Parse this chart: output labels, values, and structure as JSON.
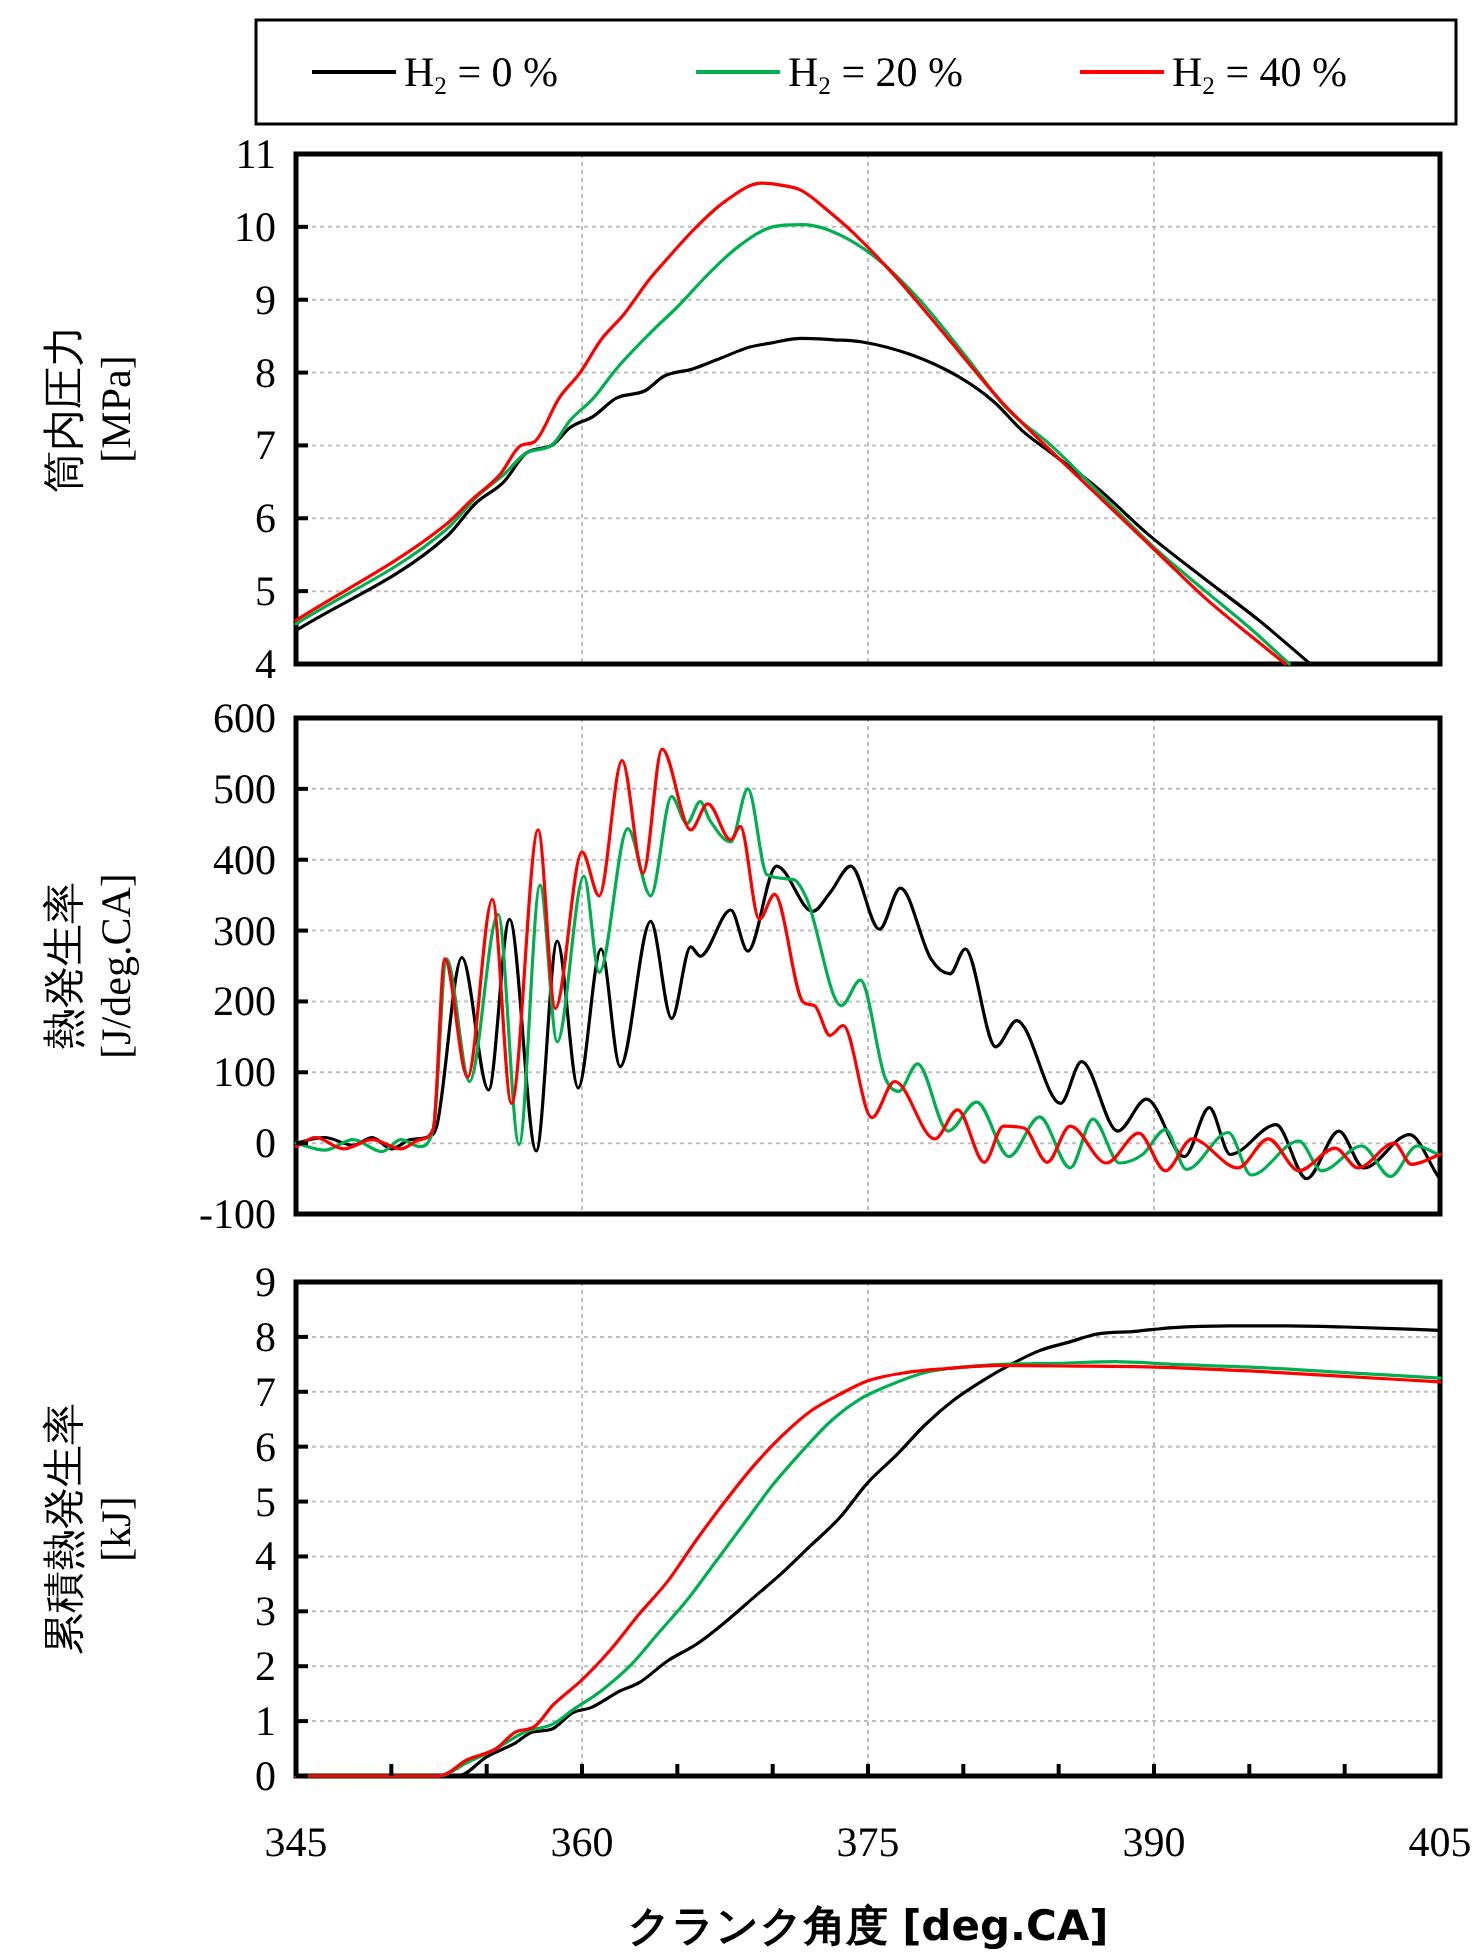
{
  "chart_data": [
    {
      "type": "line",
      "ylabel": "筒内圧力 [MPa]",
      "xlim": [
        345,
        405
      ],
      "xticks": [
        345,
        360,
        375,
        390,
        405
      ],
      "ylim": [
        4,
        11
      ],
      "yticks": [
        4,
        5,
        6,
        7,
        8,
        9,
        10,
        11
      ],
      "grid": true,
      "legend": "top",
      "tick_labels": "y",
      "line_style": "solid",
      "marker": "none",
      "series": [
        {
          "name": "H$_{2}$ = 0 %",
          "color": "#000000",
          "x": [
            345,
            352.9,
            354.4,
            355.9,
            357.1,
            358.4,
            359.4,
            360.6,
            361.8,
            363.3,
            364.3,
            365.8,
            367.3,
            368.8,
            369.8,
            371.5,
            373.2,
            374.7,
            377.2,
            379.7,
            381.6,
            383.1,
            384.6,
            387.1,
            389.6,
            392.5,
            395.5,
            398.2
          ],
          "values": [
            4.46,
            5.75,
            6.2,
            6.5,
            6.9,
            7.0,
            7.25,
            7.4,
            7.65,
            7.75,
            7.95,
            8.05,
            8.2,
            8.35,
            8.4,
            8.47,
            8.45,
            8.42,
            8.25,
            7.95,
            7.6,
            7.2,
            6.9,
            6.4,
            5.8,
            5.2,
            4.6,
            4.0
          ]
        },
        {
          "name": "H$_{2}$ = 20 %",
          "color": "#00b050",
          "x": [
            345,
            352.9,
            354.5,
            355.9,
            357.1,
            358.4,
            359.4,
            360.6,
            361.8,
            363.8,
            365,
            366.8,
            368.3,
            370,
            371.5,
            373,
            375.3,
            377.7,
            380.2,
            382.3,
            384.6,
            387.3,
            390,
            392.7,
            395,
            397.1
          ],
          "values": [
            4.55,
            5.85,
            6.3,
            6.6,
            6.9,
            7.0,
            7.35,
            7.65,
            8.05,
            8.6,
            8.9,
            9.4,
            9.75,
            10.0,
            10.03,
            9.95,
            9.6,
            9.0,
            8.2,
            7.5,
            7.0,
            6.3,
            5.6,
            5.0,
            4.5,
            4.0
          ]
        },
        {
          "name": "H$_{2}$ = 40 %",
          "color": "#ff0000",
          "x": [
            345,
            352.8,
            354.2,
            355.7,
            356.8,
            357.5,
            358.8,
            359.9,
            361,
            362.2,
            363.6,
            364.6,
            366,
            367.5,
            369.4,
            370.5,
            371.5,
            373,
            374.3,
            376.5,
            379.1,
            382,
            384.3,
            387.3,
            390.3,
            392.7,
            395,
            396.9
          ],
          "values": [
            4.6,
            5.9,
            6.25,
            6.6,
            7.0,
            7.05,
            7.65,
            8.0,
            8.45,
            8.8,
            9.3,
            9.6,
            10.0,
            10.35,
            10.6,
            10.57,
            10.5,
            10.2,
            9.9,
            9.3,
            8.5,
            7.6,
            7.0,
            6.25,
            5.5,
            4.9,
            4.4,
            4.0
          ]
        }
      ]
    },
    {
      "type": "line",
      "ylabel": "熱発生率 [J/deg.CA]",
      "xlim": [
        345,
        405
      ],
      "xticks": [
        345,
        360,
        375,
        390,
        405
      ],
      "ylim": [
        -100,
        600
      ],
      "yticks": [
        -100,
        0,
        100,
        200,
        300,
        400,
        500,
        600
      ],
      "grid": true,
      "tick_labels": "y",
      "line_style": "solid",
      "marker": "none",
      "series": [
        {
          "color": "#000000",
          "x": [
            345,
            346.5,
            348,
            349,
            350,
            351,
            352,
            352.4,
            353.7,
            355.1,
            356.2,
            357.6,
            358.7,
            359.8,
            361,
            362,
            363.6,
            364.7,
            365.7,
            366.2,
            367.8,
            368.7,
            370.2,
            372.1,
            373,
            374.1,
            375.6,
            376.7,
            378.3,
            379.3,
            380.1,
            381.7,
            382.8,
            385.1,
            386.2,
            388.1,
            389.6,
            391.6,
            392.9,
            394,
            396.4,
            398,
            399.7,
            401,
            403.4,
            404.9
          ],
          "values": [
            0,
            8,
            -3,
            8,
            -8,
            5,
            10,
            26,
            262,
            75,
            316,
            -11,
            285,
            78,
            274,
            108,
            313,
            176,
            277,
            264,
            329,
            271,
            391,
            327,
            353,
            391,
            302,
            360,
            260,
            239,
            274,
            136,
            173,
            56,
            115,
            17,
            62,
            -19,
            50,
            -16,
            26,
            -50,
            17,
            -35,
            12,
            -47
          ]
        },
        {
          "color": "#00b050",
          "x": [
            345,
            346.5,
            348,
            349.5,
            350.5,
            351.5,
            352.2,
            352.9,
            354.1,
            355.6,
            356.7,
            357.8,
            358.7,
            360.1,
            360.9,
            362.4,
            363.6,
            364.7,
            365.5,
            366.2,
            366.7,
            367.8,
            368.7,
            369.7,
            371.1,
            371.8,
            373.6,
            374.6,
            375.9,
            376.6,
            377.6,
            379.2,
            380.7,
            382.4,
            384,
            385.6,
            386.8,
            388.2,
            389.4,
            390.6,
            391.7,
            393.9,
            395.1,
            397.6,
            398.8,
            400.9,
            402.4,
            403.8,
            404.9
          ],
          "values": [
            0,
            -10,
            5,
            -12,
            5,
            -5,
            20,
            260,
            87,
            323,
            -2,
            364,
            143,
            377,
            241,
            444,
            349,
            489,
            451,
            482,
            456,
            425,
            500,
            379,
            372,
            344,
            194,
            230,
            92,
            73,
            112,
            17,
            58,
            -19,
            37,
            -35,
            34,
            -28,
            -16,
            19,
            -37,
            15,
            -45,
            3,
            -39,
            -4,
            -47,
            -4,
            -16
          ]
        },
        {
          "color": "#ff0000",
          "x": [
            345,
            346,
            347.5,
            349,
            350.5,
            351.5,
            352.2,
            352.8,
            354,
            355.3,
            356.3,
            357.7,
            358.6,
            360,
            360.9,
            362.1,
            363.2,
            364.2,
            365.7,
            366.6,
            367.8,
            368.3,
            369.3,
            370.1,
            371.6,
            372.2,
            373,
            373.7,
            375.2,
            376.4,
            378.5,
            379.7,
            381.1,
            382.1,
            383.2,
            384.4,
            385.6,
            387.5,
            389.2,
            390.6,
            392,
            394.4,
            396,
            397.6,
            399.5,
            400.7,
            402.6,
            403.5,
            405
          ],
          "values": [
            -5,
            8,
            -8,
            5,
            -8,
            5,
            20,
            260,
            93,
            344,
            56,
            442,
            190,
            411,
            349,
            540,
            381,
            556,
            442,
            479,
            428,
            447,
            316,
            351,
            199,
            194,
            152,
            166,
            36,
            87,
            6,
            47,
            -27,
            24,
            21,
            -27,
            24,
            -28,
            14,
            -39,
            6,
            -35,
            6,
            -39,
            -7,
            -35,
            0,
            -30,
            -16
          ]
        }
      ]
    },
    {
      "type": "line",
      "ylabel": "累積熱発生率 [kJ]",
      "xlabel": "クランク角度 [deg.CA]",
      "xlim": [
        345,
        405
      ],
      "xticks": [
        345,
        {
          "value": 350,
          "label": null
        },
        {
          "value": 355,
          "label": null
        },
        360,
        {
          "value": 365,
          "label": null
        },
        {
          "value": 370,
          "label": null
        },
        375,
        {
          "value": 380,
          "label": null
        },
        {
          "value": 385,
          "label": null
        },
        390,
        {
          "value": 395,
          "label": null
        },
        {
          "value": 400,
          "label": null
        },
        405
      ],
      "ylim": [
        0,
        9
      ],
      "yticks": [
        0,
        1,
        2,
        3,
        4,
        5,
        6,
        7,
        8,
        9
      ],
      "grid": true,
      "line_style": "solid",
      "marker": "none",
      "series": [
        {
          "color": "#000000",
          "x": [
            345,
            353.5,
            355,
            356.5,
            357.4,
            358.4,
            359.5,
            360.5,
            362,
            363,
            364.5,
            366,
            367.5,
            369,
            370.5,
            372,
            373.5,
            375,
            376.5,
            378,
            379.5,
            381,
            382.5,
            384,
            385.5,
            387,
            389,
            391,
            394,
            397,
            400,
            405
          ],
          "values": [
            0,
            0,
            0.35,
            0.6,
            0.8,
            0.85,
            1.15,
            1.25,
            1.55,
            1.7,
            2.1,
            2.4,
            2.8,
            3.25,
            3.7,
            4.2,
            4.7,
            5.35,
            5.85,
            6.4,
            6.85,
            7.2,
            7.5,
            7.75,
            7.9,
            8.05,
            8.1,
            8.17,
            8.2,
            8.2,
            8.18,
            8.12
          ]
        },
        {
          "color": "#00b050",
          "x": [
            345,
            352.5,
            354,
            355.5,
            357,
            358.5,
            359.5,
            361,
            362.5,
            364,
            365.5,
            367,
            368.5,
            370,
            371.5,
            373,
            374.5,
            376,
            378,
            380,
            382,
            385,
            388,
            391,
            395,
            400,
            405
          ],
          "values": [
            0,
            0,
            0.25,
            0.5,
            0.8,
            0.95,
            1.2,
            1.55,
            2.0,
            2.6,
            3.2,
            3.9,
            4.6,
            5.3,
            5.9,
            6.45,
            6.85,
            7.1,
            7.35,
            7.45,
            7.5,
            7.52,
            7.55,
            7.5,
            7.45,
            7.35,
            7.25
          ]
        },
        {
          "color": "#ff0000",
          "x": [
            345,
            352.5,
            354,
            355.5,
            356.5,
            357.5,
            358.5,
            360,
            361.5,
            363,
            364.5,
            366,
            367.5,
            369,
            370.5,
            372,
            373.5,
            375,
            377,
            379,
            382,
            385,
            390,
            395,
            400,
            405
          ],
          "values": [
            0,
            0,
            0.3,
            0.5,
            0.8,
            0.9,
            1.3,
            1.75,
            2.3,
            2.95,
            3.55,
            4.3,
            5.0,
            5.65,
            6.2,
            6.65,
            6.95,
            7.2,
            7.35,
            7.42,
            7.48,
            7.47,
            7.45,
            7.38,
            7.28,
            7.18
          ]
        }
      ]
    }
  ]
}
